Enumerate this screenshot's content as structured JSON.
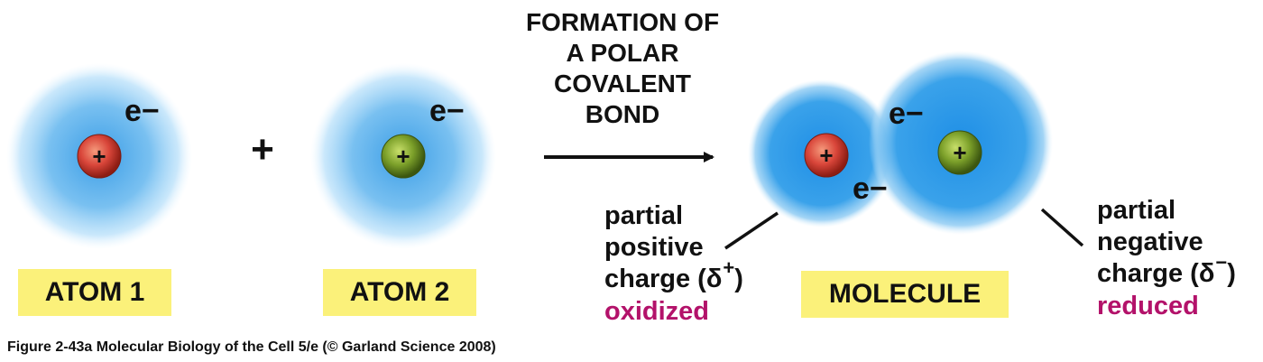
{
  "reaction": {
    "plus": "+",
    "arrow_caption": [
      "FORMATION OF",
      "A POLAR",
      "COVALENT",
      "BOND"
    ]
  },
  "atom1": {
    "electron": "e−",
    "nucleus_sign": "+",
    "label": "ATOM 1",
    "nucleus_color": "#d9463a"
  },
  "atom2": {
    "electron": "e−",
    "nucleus_sign": "+",
    "label": "ATOM 2",
    "nucleus_color": "#7ca02a"
  },
  "molecule": {
    "electron_top": "e−",
    "electron_bottom": "e−",
    "label": "MOLECULE",
    "nucleus_sign_left": "+",
    "nucleus_sign_right": "+"
  },
  "left_annotation": {
    "line1": "partial",
    "line2": "positive",
    "line3_prefix": "charge (δ",
    "line3_sup": "+",
    "line3_suffix": ")",
    "state": "oxidized"
  },
  "right_annotation": {
    "line1": "partial",
    "line2": "negative",
    "line3_prefix": "charge (δ",
    "line3_sup": "−",
    "line3_suffix": ")",
    "state": "reduced"
  },
  "caption": "Figure 2-43a  Molecular Biology of the Cell 5/e (© Garland Science 2008)",
  "colors": {
    "cloud": "#4aa8e6",
    "label_box": "#fbf17a",
    "accent_text": "#b3126a"
  }
}
